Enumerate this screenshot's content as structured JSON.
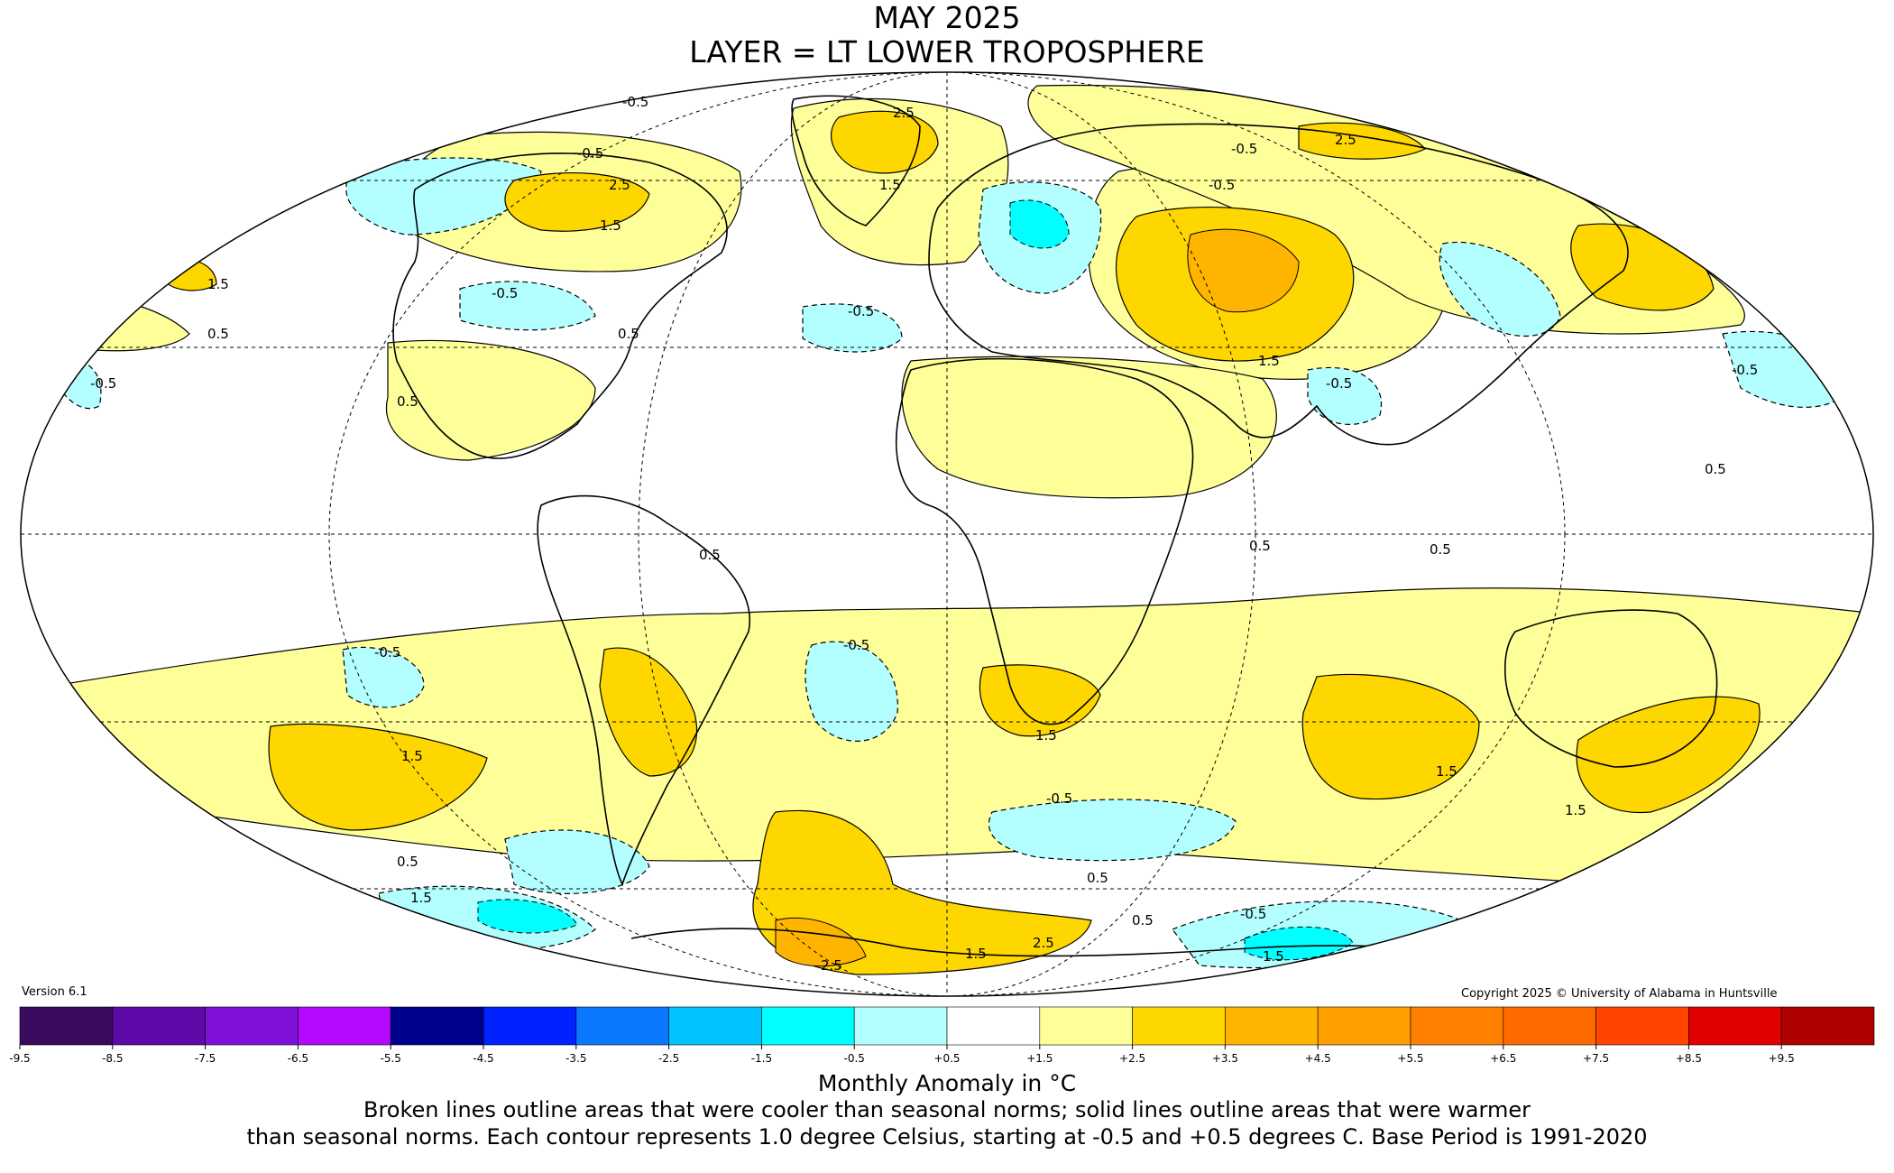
{
  "title": "MAY 2025",
  "subtitle": "LAYER = LT LOWER TROPOSPHERE",
  "version": "Version 6.1",
  "copyright": "Copyright 2025 © University of Alabama in Huntsville",
  "colorbar": {
    "label": "Monthly Anomaly in °C",
    "ticks": [
      "-9.5",
      "-8.5",
      "-7.5",
      "-6.5",
      "-5.5",
      "-4.5",
      "-3.5",
      "-2.5",
      "-1.5",
      "-0.5",
      "+0.5",
      "+1.5",
      "+2.5",
      "+3.5",
      "+4.5",
      "+5.5",
      "+6.5",
      "+7.5",
      "+8.5",
      "+9.5"
    ],
    "colors": [
      "#3a0a5e",
      "#5e0aa8",
      "#8010d8",
      "#b30aff",
      "#00008e",
      "#0022ff",
      "#0a78ff",
      "#00c4ff",
      "#00ffff",
      "#b3ffff",
      "#ffffff",
      "#ffff99",
      "#ffd700",
      "#ffb400",
      "#ffa000",
      "#ff8000",
      "#ff6a00",
      "#ff4500",
      "#e00000",
      "#b00000"
    ]
  },
  "note_line1": "Broken lines outline areas that were cooler than seasonal norms; solid lines outline areas that were warmer",
  "note_line2": "than seasonal norms. Each contour represents 1.0 degree Celsius, starting at -0.5 and +0.5 degrees C. Base Period is 1991-2020",
  "contour_labels": [
    "-0.5",
    "0.5",
    "1.5",
    "2.5"
  ]
}
